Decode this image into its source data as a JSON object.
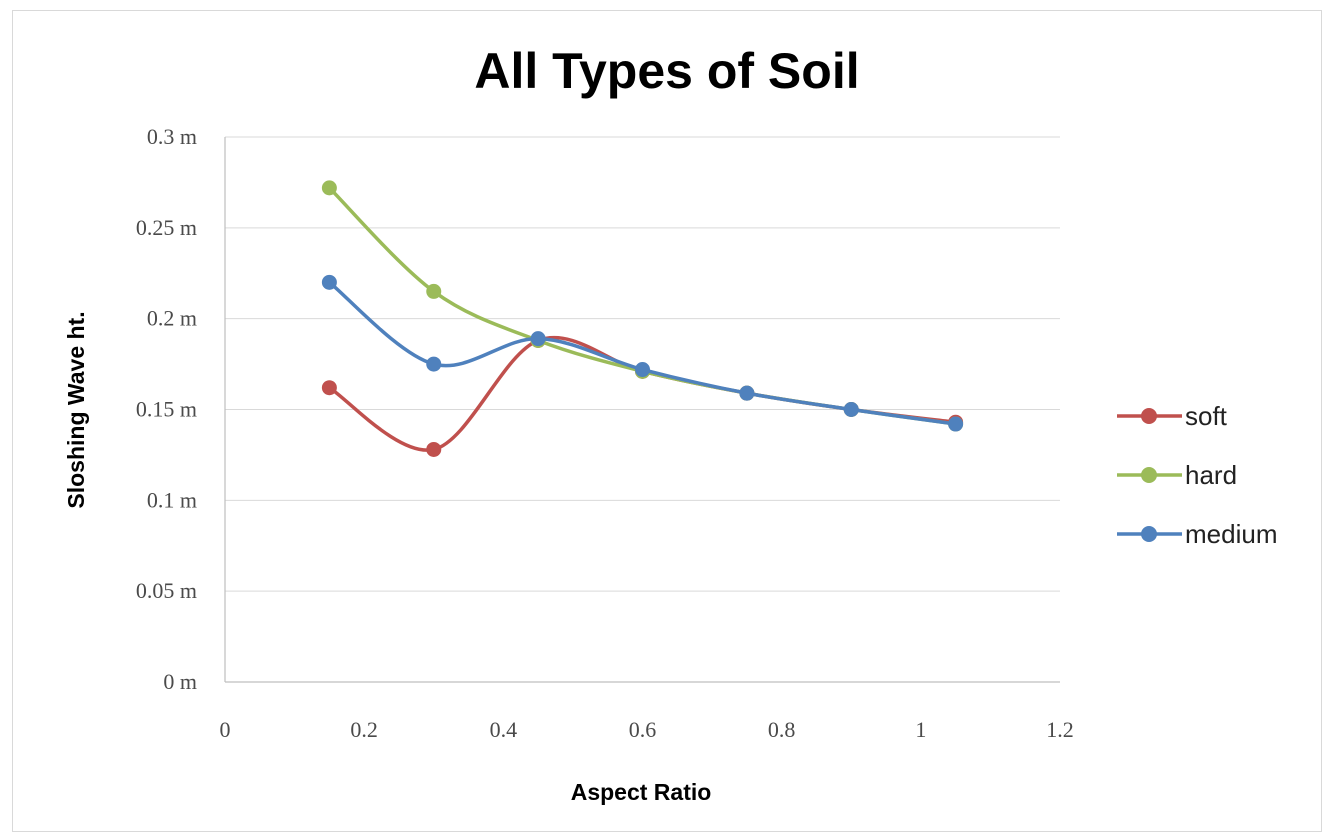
{
  "chart_data": {
    "type": "line",
    "title": "All Types of Soil",
    "xlabel": "Aspect Ratio",
    "ylabel": "Sloshing Wave ht.",
    "xlim": [
      0,
      1.2
    ],
    "ylim": [
      0,
      0.3
    ],
    "x_ticks": [
      0,
      0.2,
      0.4,
      0.6,
      0.8,
      1,
      1.2
    ],
    "x_tick_labels": [
      "0",
      "0.2",
      "0.4",
      "0.6",
      "0.8",
      "1",
      "1.2"
    ],
    "y_ticks": [
      0,
      0.05,
      0.1,
      0.15,
      0.2,
      0.25,
      0.3
    ],
    "y_tick_labels": [
      "0 m",
      "0.05 m",
      "0.1 m",
      "0.15 m",
      "0.2 m",
      "0.25 m",
      "0.3 m"
    ],
    "grid": "horizontal",
    "legend": "right",
    "smooth": true,
    "series": [
      {
        "name": "soft",
        "color": "#c0504d",
        "x": [
          0.15,
          0.3,
          0.45,
          0.6,
          0.75,
          0.9,
          1.05
        ],
        "y": [
          0.162,
          0.128,
          0.188,
          0.171,
          0.159,
          0.15,
          0.143
        ]
      },
      {
        "name": "hard",
        "color": "#9bbb59",
        "x": [
          0.15,
          0.3,
          0.45,
          0.6,
          0.75,
          0.9,
          1.05
        ],
        "y": [
          0.272,
          0.215,
          0.188,
          0.171,
          0.159,
          0.15,
          0.142
        ]
      },
      {
        "name": "medium",
        "color": "#4f81bd",
        "x": [
          0.15,
          0.3,
          0.45,
          0.6,
          0.75,
          0.9,
          1.05
        ],
        "y": [
          0.22,
          0.175,
          0.189,
          0.172,
          0.159,
          0.15,
          0.142
        ]
      }
    ]
  }
}
